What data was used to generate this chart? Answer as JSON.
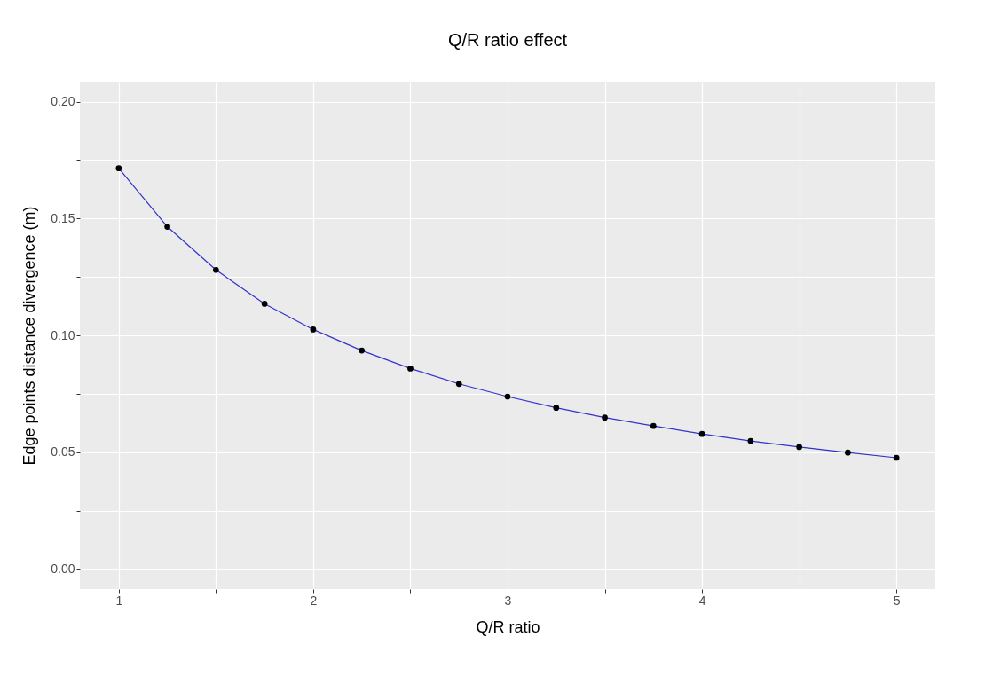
{
  "chart_data": {
    "type": "line",
    "title": "Q/R ratio effect",
    "xlabel": "Q/R ratio",
    "ylabel": "Edge points distance divergence (m)",
    "x": [
      1,
      1.25,
      1.5,
      1.75,
      2,
      2.25,
      2.5,
      2.75,
      3,
      3.25,
      3.5,
      3.75,
      4,
      4.25,
      4.5,
      4.75,
      5
    ],
    "series": [
      {
        "color": "#3333cc",
        "values": [
          0.1715,
          0.1465,
          0.128,
          0.1135,
          0.1025,
          0.0935,
          0.0858,
          0.0792,
          0.0738,
          0.069,
          0.0648,
          0.0612,
          0.0578,
          0.0548,
          0.0522,
          0.0498,
          0.0476
        ]
      },
      {
        "type": "scatter",
        "marker": "circle",
        "color": "#000000",
        "values": [
          0.1715,
          0.1465,
          0.128,
          0.1135,
          0.1025,
          0.0935,
          0.0858,
          0.0792,
          0.0738,
          0.069,
          0.0648,
          0.0612,
          0.0578,
          0.0548,
          0.0522,
          0.0498,
          0.0476
        ]
      }
    ],
    "xlim": [
      0.8,
      5.2
    ],
    "xticks": [
      1,
      {
        "value": 1.5,
        "label": null
      },
      2,
      {
        "value": 2.5,
        "label": null
      },
      3,
      {
        "value": 3.5,
        "label": null
      },
      4,
      {
        "value": 4.5,
        "label": null
      },
      5
    ],
    "ylim": [
      -0.0086,
      0.2086
    ],
    "yticks": [
      {
        "value": 0,
        "label": "0.00"
      },
      {
        "value": 0.025,
        "label": null
      },
      {
        "value": 0.05,
        "label": "0.05"
      },
      {
        "value": 0.075,
        "label": null
      },
      {
        "value": 0.1,
        "label": "0.10"
      },
      {
        "value": 0.125,
        "label": null
      },
      {
        "value": 0.15,
        "label": "0.15"
      },
      {
        "value": 0.175,
        "label": null
      },
      {
        "value": 0.2,
        "label": "0.20"
      }
    ],
    "grid": true
  }
}
